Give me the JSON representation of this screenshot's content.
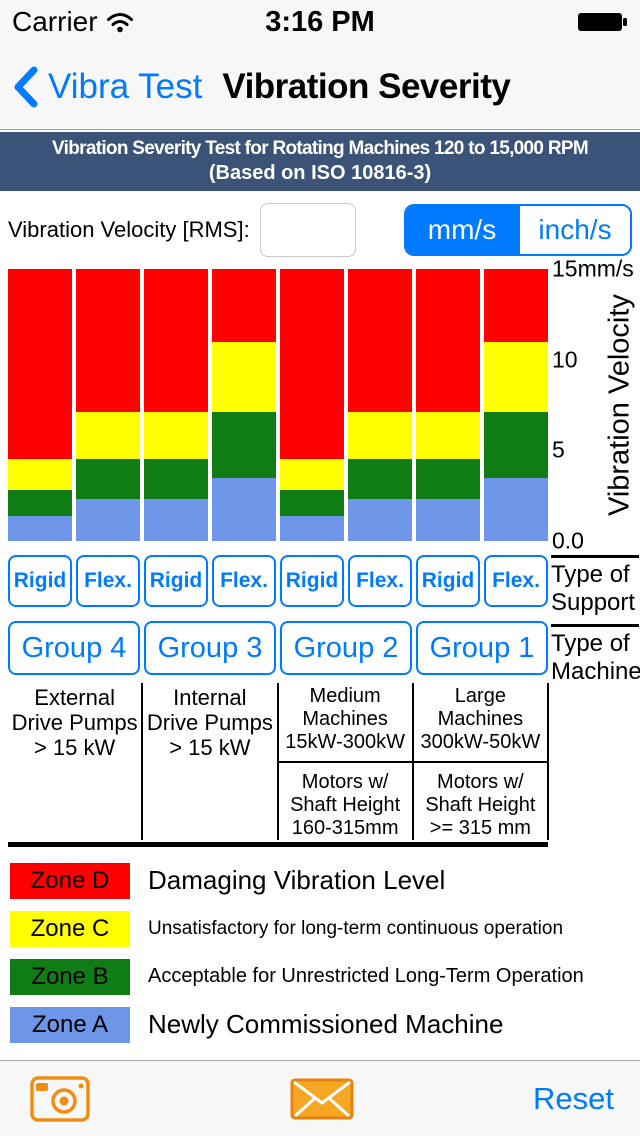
{
  "status_bar": {
    "carrier": "Carrier",
    "time": "3:16 PM"
  },
  "nav": {
    "back_label": "Vibra Test",
    "title": "Vibration Severity"
  },
  "banner": {
    "line1": "Vibration Severity Test for Rotating Machines 120 to 15,000 RPM",
    "line2": "(Based on ISO 10816-3)"
  },
  "input_row": {
    "label": "Vibration Velocity [RMS]:",
    "value": "",
    "units": [
      {
        "label": "mm/s",
        "selected": true
      },
      {
        "label": "inch/s",
        "selected": false
      }
    ]
  },
  "chart_data": {
    "type": "bar",
    "stacked": true,
    "title": "",
    "xlabel": "",
    "ylabel": "Vibration Velocity",
    "unit": "mm/s",
    "ylim": [
      0,
      15
    ],
    "grid": false,
    "y_ticks": [
      {
        "label": "15mm/s",
        "value": 15
      },
      {
        "label": "10",
        "value": 10
      },
      {
        "label": "5",
        "value": 5
      },
      {
        "label": "0.0",
        "value": 0
      }
    ],
    "categories": [
      "Group 4 Rigid",
      "Group 4 Flex",
      "Group 3 Rigid",
      "Group 3 Flex",
      "Group 2 Rigid",
      "Group 2 Flex",
      "Group 1 Rigid",
      "Group 1 Flex"
    ],
    "values_are": "upper boundary of each zone in mm/s RMS",
    "series": [
      {
        "name": "Zone A",
        "values": [
          1.4,
          2.3,
          2.3,
          3.5,
          1.4,
          2.3,
          2.3,
          3.5
        ]
      },
      {
        "name": "Zone B",
        "values": [
          2.8,
          4.5,
          4.5,
          7.1,
          2.8,
          4.5,
          4.5,
          7.1
        ]
      },
      {
        "name": "Zone C",
        "values": [
          4.5,
          7.1,
          7.1,
          11.0,
          4.5,
          7.1,
          7.1,
          11.0
        ]
      },
      {
        "name": "Zone D",
        "values": [
          15,
          15,
          15,
          15,
          15,
          15,
          15,
          15
        ]
      }
    ],
    "colors": {
      "zone_a": "#6e96e8",
      "zone_b": "#0f7d13",
      "zone_c": "#ffff00",
      "zone_d": "#ff0000"
    }
  },
  "support_row": {
    "items": [
      "Rigid",
      "Flex.",
      "Rigid",
      "Flex.",
      "Rigid",
      "Flex.",
      "Rigid",
      "Flex."
    ],
    "side_label": "Type of Support"
  },
  "group_row": {
    "items": [
      "Group 4",
      "Group 3",
      "Group 2",
      "Group 1"
    ],
    "side_label": "Type of Machine"
  },
  "machine_columns": [
    {
      "top": "External\nDrive Pumps\n> 15 kW",
      "bottom": ""
    },
    {
      "top": "Internal\nDrive Pumps\n> 15 kW",
      "bottom": ""
    },
    {
      "top": "Medium\nMachines\n15kW-300kW",
      "bottom": "Motors w/\nShaft Height\n160-315mm"
    },
    {
      "top": "Large\nMachines\n300kW-50kW",
      "bottom": "Motors w/\nShaft Height\n>= 315 mm"
    }
  ],
  "legend": [
    {
      "zone": "Zone D",
      "color": "#ff0000",
      "label": "Damaging Vibration Level"
    },
    {
      "zone": "Zone C",
      "color": "#ffff00",
      "label": "Unsatisfactory for long-term continuous operation"
    },
    {
      "zone": "Zone B",
      "color": "#0f7d13",
      "label": "Acceptable for Unrestricted Long-Term Operation"
    },
    {
      "zone": "Zone A",
      "color": "#6e96e8",
      "label": "Newly Commissioned Machine"
    }
  ],
  "toolbar": {
    "reset_label": "Reset",
    "icons": [
      "camera-icon",
      "email-icon"
    ],
    "icon_color": "#ef8e13",
    "accent_color": "#007aff"
  },
  "theme": {
    "banner_bg": "#3b5377",
    "bar_bg": "#f7f7f7"
  }
}
